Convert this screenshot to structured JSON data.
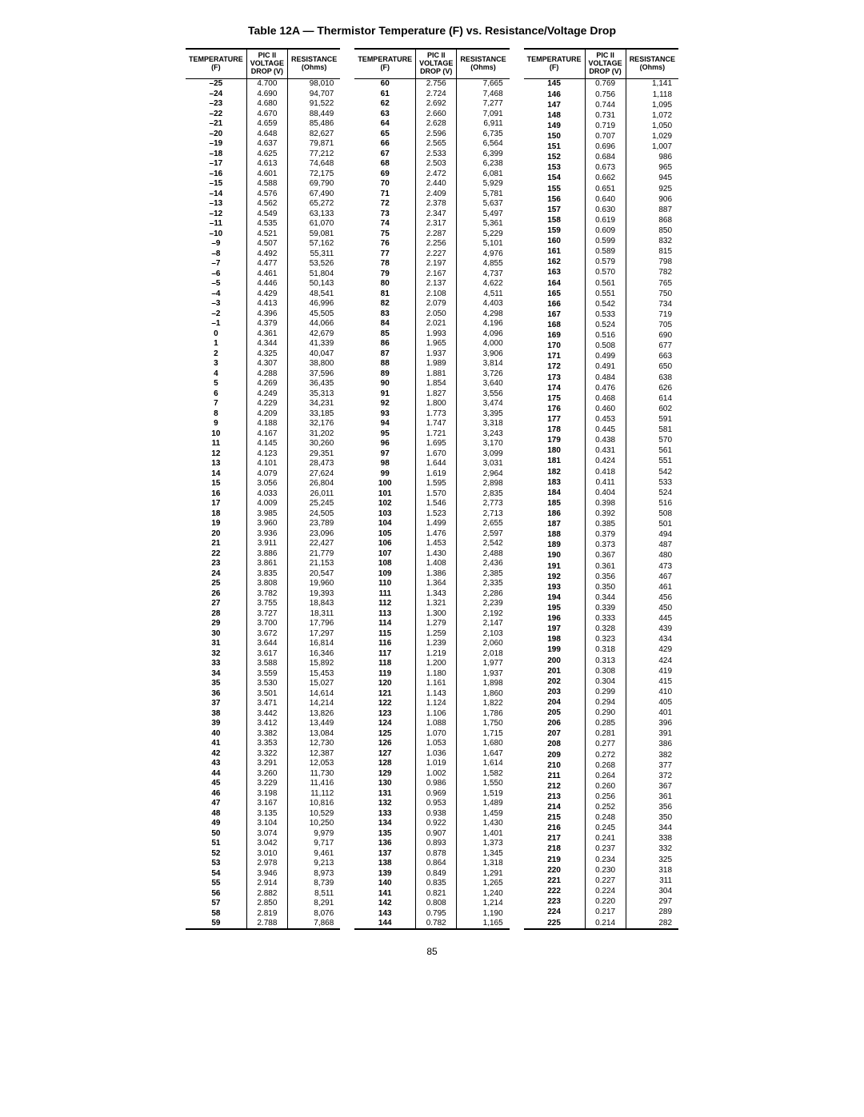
{
  "title": "Table 12A — Thermistor Temperature (F) vs. Resistance/Voltage Drop",
  "page_number": "85",
  "headers": {
    "temp": "TEMPERATURE\n(F)",
    "volt": "PIC II\nVOLTAGE\nDROP (V)",
    "res": "RESISTANCE\n(Ohms)"
  },
  "panels": [
    [
      [
        "–25",
        "4.700",
        "98,010"
      ],
      [
        "–24",
        "4.690",
        "94,707"
      ],
      [
        "–23",
        "4.680",
        "91,522"
      ],
      [
        "–22",
        "4.670",
        "88,449"
      ],
      [
        "–21",
        "4.659",
        "85,486"
      ],
      [
        "–20",
        "4.648",
        "82,627"
      ],
      [
        "–19",
        "4.637",
        "79,871"
      ],
      [
        "–18",
        "4.625",
        "77,212"
      ],
      [
        "–17",
        "4.613",
        "74,648"
      ],
      [
        "–16",
        "4.601",
        "72,175"
      ],
      [
        "–15",
        "4.588",
        "69,790"
      ],
      [
        "–14",
        "4.576",
        "67,490"
      ],
      [
        "–13",
        "4.562",
        "65,272"
      ],
      [
        "–12",
        "4.549",
        "63,133"
      ],
      [
        "–11",
        "4.535",
        "61,070"
      ],
      [
        "–10",
        "4.521",
        "59,081"
      ],
      [
        " –9",
        "4.507",
        "57,162"
      ],
      [
        " –8",
        "4.492",
        "55,311"
      ],
      [
        " –7",
        "4.477",
        "53,526"
      ],
      [
        " –6",
        "4.461",
        "51,804"
      ],
      [
        " –5",
        "4.446",
        "50,143"
      ],
      [
        " –4",
        "4.429",
        "48,541"
      ],
      [
        " –3",
        "4.413",
        "46,996"
      ],
      [
        " –2",
        "4.396",
        "45,505"
      ],
      [
        " –1",
        "4.379",
        "44,066"
      ],
      [
        "  0",
        "4.361",
        "42,679"
      ],
      [
        "  1",
        "4.344",
        "41,339"
      ],
      [
        "  2",
        "4.325",
        "40,047"
      ],
      [
        "  3",
        "4.307",
        "38,800"
      ],
      [
        "  4",
        "4.288",
        "37,596"
      ],
      [
        "  5",
        "4.269",
        "36,435"
      ],
      [
        "  6",
        "4.249",
        "35,313"
      ],
      [
        "  7",
        "4.229",
        "34,231"
      ],
      [
        "  8",
        "4.209",
        "33,185"
      ],
      [
        "  9",
        "4.188",
        "32,176"
      ],
      [
        " 10",
        "4.167",
        "31,202"
      ],
      [
        " 11",
        "4.145",
        "30,260"
      ],
      [
        " 12",
        "4.123",
        "29,351"
      ],
      [
        " 13",
        "4.101",
        "28,473"
      ],
      [
        " 14",
        "4.079",
        "27,624"
      ],
      [
        " 15",
        "3.056",
        "26,804"
      ],
      [
        " 16",
        "4.033",
        "26,011"
      ],
      [
        " 17",
        "4.009",
        "25,245"
      ],
      [
        " 18",
        "3.985",
        "24,505"
      ],
      [
        " 19",
        "3.960",
        "23,789"
      ],
      [
        " 20",
        "3.936",
        "23,096"
      ],
      [
        " 21",
        "3.911",
        "22,427"
      ],
      [
        " 22",
        "3.886",
        "21,779"
      ],
      [
        " 23",
        "3.861",
        "21,153"
      ],
      [
        " 24",
        "3.835",
        "20,547"
      ],
      [
        " 25",
        "3.808",
        "19,960"
      ],
      [
        " 26",
        "3.782",
        "19,393"
      ],
      [
        " 27",
        "3.755",
        "18,843"
      ],
      [
        " 28",
        "3.727",
        "18,311"
      ],
      [
        " 29",
        "3.700",
        "17,796"
      ],
      [
        " 30",
        "3.672",
        "17,297"
      ],
      [
        " 31",
        "3.644",
        "16,814"
      ],
      [
        " 32",
        "3.617",
        "16,346"
      ],
      [
        " 33",
        "3.588",
        "15,892"
      ],
      [
        " 34",
        "3.559",
        "15,453"
      ],
      [
        " 35",
        "3.530",
        "15,027"
      ],
      [
        " 36",
        "3.501",
        "14,614"
      ],
      [
        " 37",
        "3.471",
        "14,214"
      ],
      [
        " 38",
        "3.442",
        "13,826"
      ],
      [
        " 39",
        "3.412",
        "13,449"
      ],
      [
        " 40",
        "3.382",
        "13,084"
      ],
      [
        " 41",
        "3.353",
        "12,730"
      ],
      [
        " 42",
        "3.322",
        "12,387"
      ],
      [
        " 43",
        "3.291",
        "12,053"
      ],
      [
        " 44",
        "3.260",
        "11,730"
      ],
      [
        " 45",
        "3.229",
        "11,416"
      ],
      [
        " 46",
        "3.198",
        "11,112"
      ],
      [
        " 47",
        "3.167",
        "10,816"
      ],
      [
        " 48",
        "3.135",
        "10,529"
      ],
      [
        " 49",
        "3.104",
        "10,250"
      ],
      [
        " 50",
        "3.074",
        " 9,979"
      ],
      [
        " 51",
        "3.042",
        " 9,717"
      ],
      [
        " 52",
        "3.010",
        " 9,461"
      ],
      [
        " 53",
        "2.978",
        " 9,213"
      ],
      [
        " 54",
        "3.946",
        " 8,973"
      ],
      [
        " 55",
        "2.914",
        " 8,739"
      ],
      [
        " 56",
        "2.882",
        " 8,511"
      ],
      [
        " 57",
        "2.850",
        " 8,291"
      ],
      [
        " 58",
        "2.819",
        " 8,076"
      ],
      [
        " 59",
        "2.788",
        " 7,868"
      ]
    ],
    [
      [
        " 60",
        "2.756",
        " 7,665"
      ],
      [
        " 61",
        "2.724",
        " 7,468"
      ],
      [
        " 62",
        "2.692",
        " 7,277"
      ],
      [
        " 63",
        "2.660",
        " 7,091"
      ],
      [
        " 64",
        "2.628",
        " 6,911"
      ],
      [
        " 65",
        "2.596",
        " 6,735"
      ],
      [
        " 66",
        "2.565",
        " 6,564"
      ],
      [
        " 67",
        "2.533",
        " 6,399"
      ],
      [
        " 68",
        "2.503",
        " 6,238"
      ],
      [
        " 69",
        "2.472",
        " 6,081"
      ],
      [
        " 70",
        "2.440",
        " 5,929"
      ],
      [
        " 71",
        "2.409",
        " 5,781"
      ],
      [
        " 72",
        "2.378",
        " 5,637"
      ],
      [
        " 73",
        "2.347",
        " 5,497"
      ],
      [
        " 74",
        "2.317",
        " 5,361"
      ],
      [
        " 75",
        "2.287",
        " 5,229"
      ],
      [
        " 76",
        "2.256",
        " 5,101"
      ],
      [
        " 77",
        "2.227",
        " 4,976"
      ],
      [
        " 78",
        "2.197",
        " 4,855"
      ],
      [
        " 79",
        "2.167",
        " 4,737"
      ],
      [
        " 80",
        "2.137",
        " 4,622"
      ],
      [
        " 81",
        "2.108",
        " 4,511"
      ],
      [
        " 82",
        "2.079",
        " 4,403"
      ],
      [
        " 83",
        "2.050",
        " 4,298"
      ],
      [
        " 84",
        "2.021",
        " 4,196"
      ],
      [
        " 85",
        "1.993",
        " 4,096"
      ],
      [
        " 86",
        "1.965",
        " 4,000"
      ],
      [
        " 87",
        "1.937",
        " 3,906"
      ],
      [
        " 88",
        "1.989",
        " 3,814"
      ],
      [
        " 89",
        "1.881",
        " 3,726"
      ],
      [
        " 90",
        "1.854",
        " 3,640"
      ],
      [
        " 91",
        "1.827",
        " 3,556"
      ],
      [
        " 92",
        "1.800",
        " 3,474"
      ],
      [
        " 93",
        "1.773",
        " 3,395"
      ],
      [
        " 94",
        "1.747",
        " 3,318"
      ],
      [
        " 95",
        "1.721",
        " 3,243"
      ],
      [
        " 96",
        "1.695",
        " 3,170"
      ],
      [
        " 97",
        "1.670",
        " 3,099"
      ],
      [
        " 98",
        "1.644",
        " 3,031"
      ],
      [
        " 99",
        "1.619",
        " 2,964"
      ],
      [
        "100",
        "1.595",
        " 2,898"
      ],
      [
        "101",
        "1.570",
        " 2,835"
      ],
      [
        "102",
        "1.546",
        " 2,773"
      ],
      [
        "103",
        "1.523",
        " 2,713"
      ],
      [
        "104",
        "1.499",
        " 2,655"
      ],
      [
        "105",
        "1.476",
        " 2,597"
      ],
      [
        "106",
        "1.453",
        " 2,542"
      ],
      [
        "107",
        "1.430",
        " 2,488"
      ],
      [
        "108",
        "1.408",
        " 2,436"
      ],
      [
        "109",
        "1.386",
        " 2,385"
      ],
      [
        "110",
        "1.364",
        " 2,335"
      ],
      [
        "111",
        "1.343",
        " 2,286"
      ],
      [
        "112",
        "1.321",
        " 2,239"
      ],
      [
        "113",
        "1.300",
        " 2,192"
      ],
      [
        "114",
        "1.279",
        " 2,147"
      ],
      [
        "115",
        "1.259",
        " 2,103"
      ],
      [
        "116",
        "1.239",
        " 2,060"
      ],
      [
        "117",
        "1.219",
        " 2,018"
      ],
      [
        "118",
        "1.200",
        " 1,977"
      ],
      [
        "119",
        "1.180",
        " 1,937"
      ],
      [
        "120",
        "1.161",
        " 1,898"
      ],
      [
        "121",
        "1.143",
        " 1,860"
      ],
      [
        "122",
        "1.124",
        " 1,822"
      ],
      [
        "123",
        "1.106",
        " 1,786"
      ],
      [
        "124",
        "1.088",
        " 1,750"
      ],
      [
        "125",
        "1.070",
        " 1,715"
      ],
      [
        "126",
        "1.053",
        " 1,680"
      ],
      [
        "127",
        "1.036",
        " 1,647"
      ],
      [
        "128",
        "1.019",
        " 1,614"
      ],
      [
        "129",
        "1.002",
        " 1,582"
      ],
      [
        "130",
        "0.986",
        " 1,550"
      ],
      [
        "131",
        "0.969",
        " 1,519"
      ],
      [
        "132",
        "0.953",
        " 1,489"
      ],
      [
        "133",
        "0.938",
        " 1,459"
      ],
      [
        "134",
        "0.922",
        " 1,430"
      ],
      [
        "135",
        "0.907",
        " 1,401"
      ],
      [
        "136",
        "0.893",
        " 1,373"
      ],
      [
        "137",
        "0.878",
        " 1,345"
      ],
      [
        "138",
        "0.864",
        " 1,318"
      ],
      [
        "139",
        "0.849",
        " 1,291"
      ],
      [
        "140",
        "0.835",
        " 1,265"
      ],
      [
        "141",
        "0.821",
        " 1,240"
      ],
      [
        "142",
        "0.808",
        " 1,214"
      ],
      [
        "143",
        "0.795",
        " 1,190"
      ],
      [
        "144",
        "0.782",
        " 1,165"
      ]
    ],
    [
      [
        "145",
        "0.769",
        " 1,141"
      ],
      [
        "146",
        "0.756",
        " 1,118"
      ],
      [
        "147",
        "0.744",
        " 1,095"
      ],
      [
        "148",
        "0.731",
        " 1,072"
      ],
      [
        "149",
        "0.719",
        " 1,050"
      ],
      [
        "150",
        "0.707",
        " 1,029"
      ],
      [
        "151",
        "0.696",
        " 1,007"
      ],
      [
        "152",
        "0.684",
        "   986"
      ],
      [
        "153",
        "0.673",
        "   965"
      ],
      [
        "154",
        "0.662",
        "   945"
      ],
      [
        "155",
        "0.651",
        "   925"
      ],
      [
        "156",
        "0.640",
        "   906"
      ],
      [
        "157",
        "0.630",
        "   887"
      ],
      [
        "158",
        "0.619",
        "   868"
      ],
      [
        "159",
        "0.609",
        "   850"
      ],
      [
        "160",
        "0.599",
        "   832"
      ],
      [
        "161",
        "0.589",
        "   815"
      ],
      [
        "162",
        "0.579",
        "   798"
      ],
      [
        "163",
        "0.570",
        "   782"
      ],
      [
        "164",
        "0.561",
        "   765"
      ],
      [
        "165",
        "0.551",
        "   750"
      ],
      [
        "166",
        "0.542",
        "   734"
      ],
      [
        "167",
        "0.533",
        "   719"
      ],
      [
        "168",
        "0.524",
        "   705"
      ],
      [
        "169",
        "0.516",
        "   690"
      ],
      [
        "170",
        "0.508",
        "   677"
      ],
      [
        "171",
        "0.499",
        "   663"
      ],
      [
        "172",
        "0.491",
        "   650"
      ],
      [
        "173",
        "0.484",
        "   638"
      ],
      [
        "174",
        "0.476",
        "   626"
      ],
      [
        "175",
        "0.468",
        "   614"
      ],
      [
        "176",
        "0.460",
        "   602"
      ],
      [
        "177",
        "0.453",
        "   591"
      ],
      [
        "178",
        "0.445",
        "   581"
      ],
      [
        "179",
        "0.438",
        "   570"
      ],
      [
        "180",
        "0.431",
        "   561"
      ],
      [
        "181",
        "0.424",
        "   551"
      ],
      [
        "182",
        "0.418",
        "   542"
      ],
      [
        "183",
        "0.411",
        "   533"
      ],
      [
        "184",
        "0.404",
        "   524"
      ],
      [
        "185",
        "0.398",
        "   516"
      ],
      [
        "186",
        "0.392",
        "   508"
      ],
      [
        "187",
        "0.385",
        "   501"
      ],
      [
        "188",
        "0.379",
        "   494"
      ],
      [
        "189",
        "0.373",
        "   487"
      ],
      [
        "190",
        "0.367",
        "   480"
      ],
      [
        "191",
        "0.361",
        "   473"
      ],
      [
        "192",
        "0.356",
        "   467"
      ],
      [
        "193",
        "0.350",
        "   461"
      ],
      [
        "194",
        "0.344",
        "   456"
      ],
      [
        "195",
        "0.339",
        "   450"
      ],
      [
        "196",
        "0.333",
        "   445"
      ],
      [
        "197",
        "0.328",
        "   439"
      ],
      [
        "198",
        "0.323",
        "   434"
      ],
      [
        "199",
        "0.318",
        "   429"
      ],
      [
        "200",
        "0.313",
        "   424"
      ],
      [
        "201",
        "0.308",
        "   419"
      ],
      [
        "202",
        "0.304",
        "   415"
      ],
      [
        "203",
        "0.299",
        "   410"
      ],
      [
        "204",
        "0.294",
        "   405"
      ],
      [
        "205",
        "0.290",
        "   401"
      ],
      [
        "206",
        "0.285",
        "   396"
      ],
      [
        "207",
        "0.281",
        "   391"
      ],
      [
        "208",
        "0.277",
        "   386"
      ],
      [
        "209",
        "0.272",
        "   382"
      ],
      [
        "210",
        "0.268",
        "   377"
      ],
      [
        "211",
        "0.264",
        "   372"
      ],
      [
        "212",
        "0.260",
        "   367"
      ],
      [
        "213",
        "0.256",
        "   361"
      ],
      [
        "214",
        "0.252",
        "   356"
      ],
      [
        "215",
        "0.248",
        "   350"
      ],
      [
        "216",
        "0.245",
        "   344"
      ],
      [
        "217",
        "0.241",
        "   338"
      ],
      [
        "218",
        "0.237",
        "   332"
      ],
      [
        "219",
        "0.234",
        "   325"
      ],
      [
        "220",
        "0.230",
        "   318"
      ],
      [
        "221",
        "0.227",
        "   311"
      ],
      [
        "222",
        "0.224",
        "   304"
      ],
      [
        "223",
        "0.220",
        "   297"
      ],
      [
        "224",
        "0.217",
        "   289"
      ],
      [
        "225",
        "0.214",
        "   282"
      ]
    ]
  ]
}
